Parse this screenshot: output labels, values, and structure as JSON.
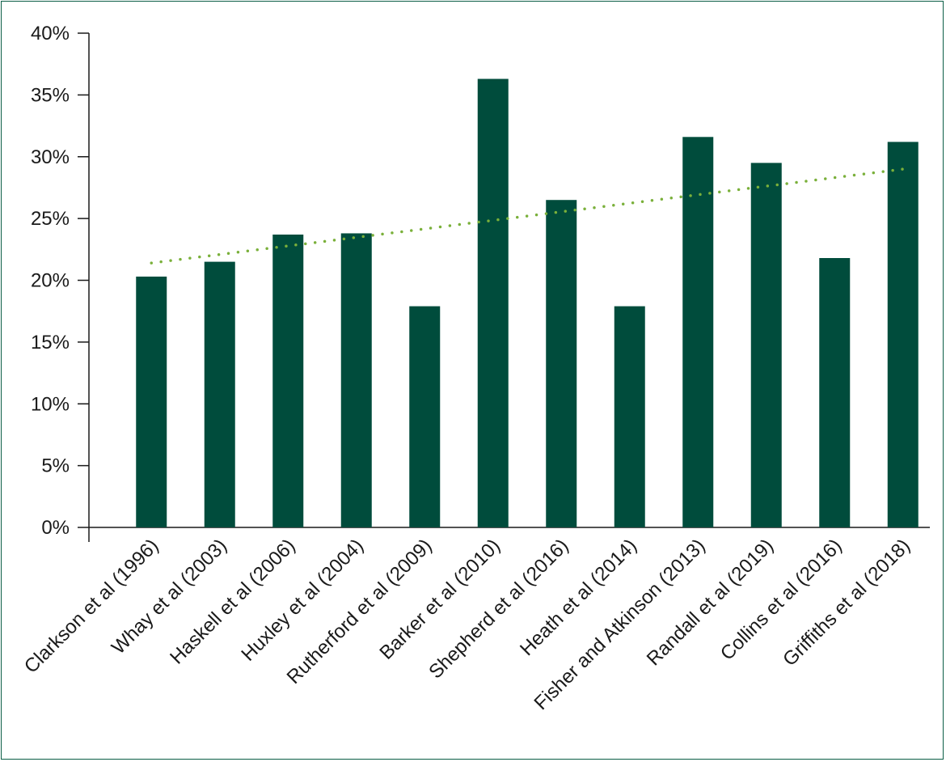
{
  "chart_data": {
    "type": "bar",
    "categories": [
      "Clarkson et al (1996)",
      "Whay et al (2003)",
      "Haskell et al (2006)",
      "Huxley et al (2004)",
      "Rutherford et al (2009)",
      "Barker et al (2010)",
      "Shepherd et al (2016)",
      "Heath et al (2014)",
      "Fisher and Atkinson (2013)",
      "Randall et al (2019)",
      "Collins et al (2016)",
      "Griffiths  et al (2018)"
    ],
    "values": [
      20.3,
      21.5,
      23.7,
      23.8,
      17.9,
      36.3,
      26.5,
      17.9,
      31.6,
      29.5,
      21.8,
      31.2
    ],
    "trendline": {
      "type": "linear",
      "style": "dotted",
      "start": 21.4,
      "end": 29.0
    },
    "ylim": [
      0,
      40
    ],
    "yticks": [
      "0%",
      "5%",
      "10%",
      "15%",
      "20%",
      "25%",
      "30%",
      "35%",
      "40%"
    ],
    "title": "",
    "xlabel": "",
    "ylabel": "",
    "grid": false,
    "colors": {
      "bar": "#004c3c",
      "trend": "#7ab03a",
      "axis": "#1a1a1a",
      "border": "#0b5e46"
    }
  }
}
